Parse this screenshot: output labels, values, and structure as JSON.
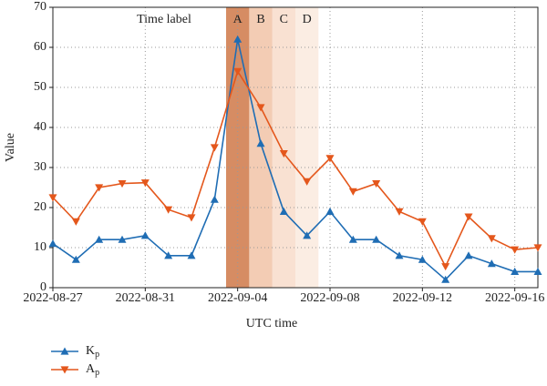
{
  "chart_data": {
    "type": "line",
    "xlabel": "UTC time",
    "ylabel": "Value",
    "annotation": "Time label",
    "x": [
      "2022-08-27",
      "2022-08-28",
      "2022-08-29",
      "2022-08-30",
      "2022-08-31",
      "2022-09-01",
      "2022-09-02",
      "2022-09-03",
      "2022-09-04",
      "2022-09-05",
      "2022-09-06",
      "2022-09-07",
      "2022-09-08",
      "2022-09-09",
      "2022-09-10",
      "2022-09-11",
      "2022-09-12",
      "2022-09-13",
      "2022-09-14",
      "2022-09-15",
      "2022-09-16",
      "2022-09-17"
    ],
    "series": [
      {
        "name": "Kp",
        "color": "#1f6db4",
        "marker": "triangle-up",
        "values": [
          11,
          7,
          12,
          12,
          13,
          8,
          8,
          22,
          62,
          36,
          19,
          13,
          19,
          12,
          12,
          8,
          7,
          2,
          8,
          6,
          4,
          4
        ]
      },
      {
        "name": "Ap",
        "color": "#e4571c",
        "marker": "triangle-down",
        "values": [
          22.5,
          16.5,
          25,
          26,
          26.2,
          19.5,
          17.5,
          35,
          54,
          45,
          33.5,
          26.5,
          32.3,
          24,
          26,
          19,
          16.5,
          5.3,
          17.7,
          12.3,
          9.5,
          10
        ]
      }
    ],
    "bands": [
      {
        "label": "A",
        "x": "2022-09-04",
        "color": "#c8652f",
        "opacity": 0.75
      },
      {
        "label": "B",
        "x": "2022-09-05",
        "color": "#e89a6a",
        "opacity": 0.5
      },
      {
        "label": "C",
        "x": "2022-09-06",
        "color": "#f0b58f",
        "opacity": 0.4
      },
      {
        "label": "D",
        "x": "2022-09-07",
        "color": "#f6d2ba",
        "opacity": 0.4
      }
    ],
    "xlim": [
      "2022-08-27",
      "2022-09-17"
    ],
    "xticks": [
      "2022-08-27",
      "2022-08-31",
      "2022-09-04",
      "2022-09-08",
      "2022-09-12",
      "2022-09-16"
    ],
    "ylim": [
      0,
      70
    ],
    "yticks": [
      0,
      10,
      20,
      30,
      40,
      50,
      60,
      70
    ],
    "grid": true,
    "legend": "bottom-left"
  }
}
